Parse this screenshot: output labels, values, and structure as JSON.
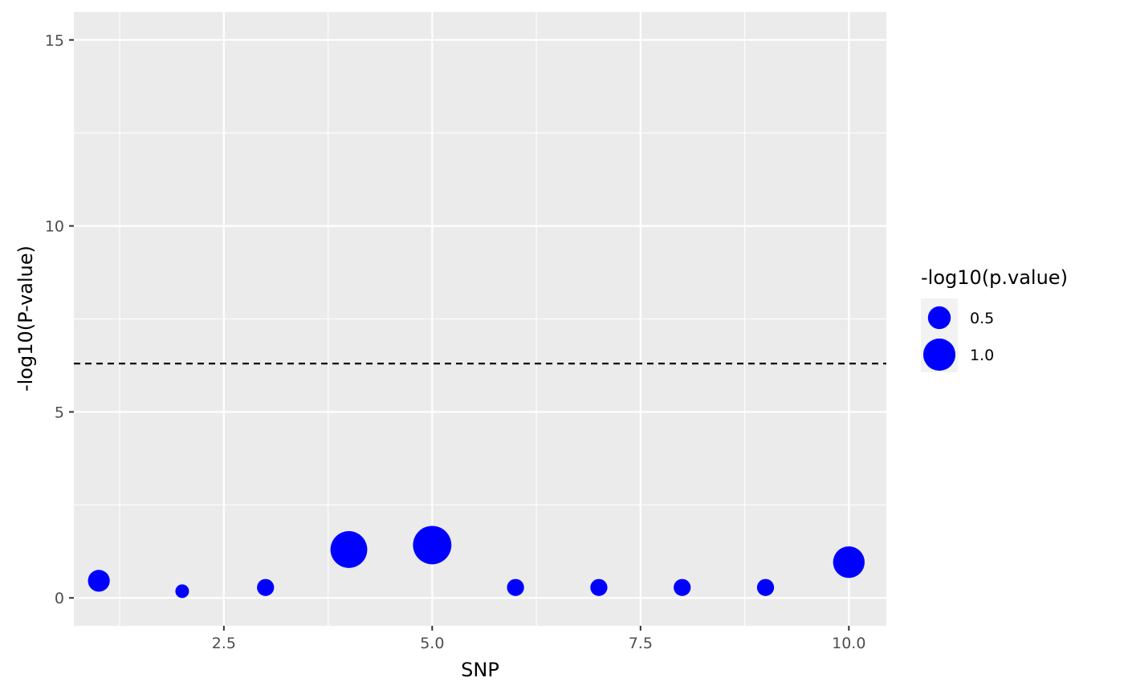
{
  "chart_data": {
    "type": "scatter",
    "title": "",
    "xlabel": "SNP",
    "ylabel": "-log10(P-value)",
    "xlim": [
      0.7,
      10.45
    ],
    "ylim": [
      -0.75,
      15.75
    ],
    "x_ticks": [
      2.5,
      5.0,
      7.5,
      10.0
    ],
    "x_tick_labels": [
      "2.5",
      "5.0",
      "7.5",
      "10.0"
    ],
    "y_ticks": [
      0,
      5,
      10,
      15
    ],
    "y_tick_labels": [
      "0",
      "5",
      "10",
      "15"
    ],
    "grid": true,
    "threshold_line": {
      "y": 6.3,
      "style": "dashed"
    },
    "point_color": "#0000ff",
    "panel_color": "#ebebeb",
    "series": [
      {
        "x": [
          1,
          2,
          3,
          4,
          5,
          6,
          7,
          8,
          9,
          10
        ],
        "y": [
          0.46,
          0.18,
          0.28,
          1.3,
          1.42,
          0.28,
          0.28,
          0.28,
          0.28,
          0.96
        ],
        "size": [
          0.46,
          0.18,
          0.28,
          1.3,
          1.42,
          0.28,
          0.28,
          0.28,
          0.28,
          0.96
        ]
      }
    ],
    "legend": {
      "title": "-log10(p.value)",
      "placement": "right",
      "entries": [
        {
          "label": "0.5",
          "value": 0.5
        },
        {
          "label": "1.0",
          "value": 1.0
        }
      ]
    }
  }
}
